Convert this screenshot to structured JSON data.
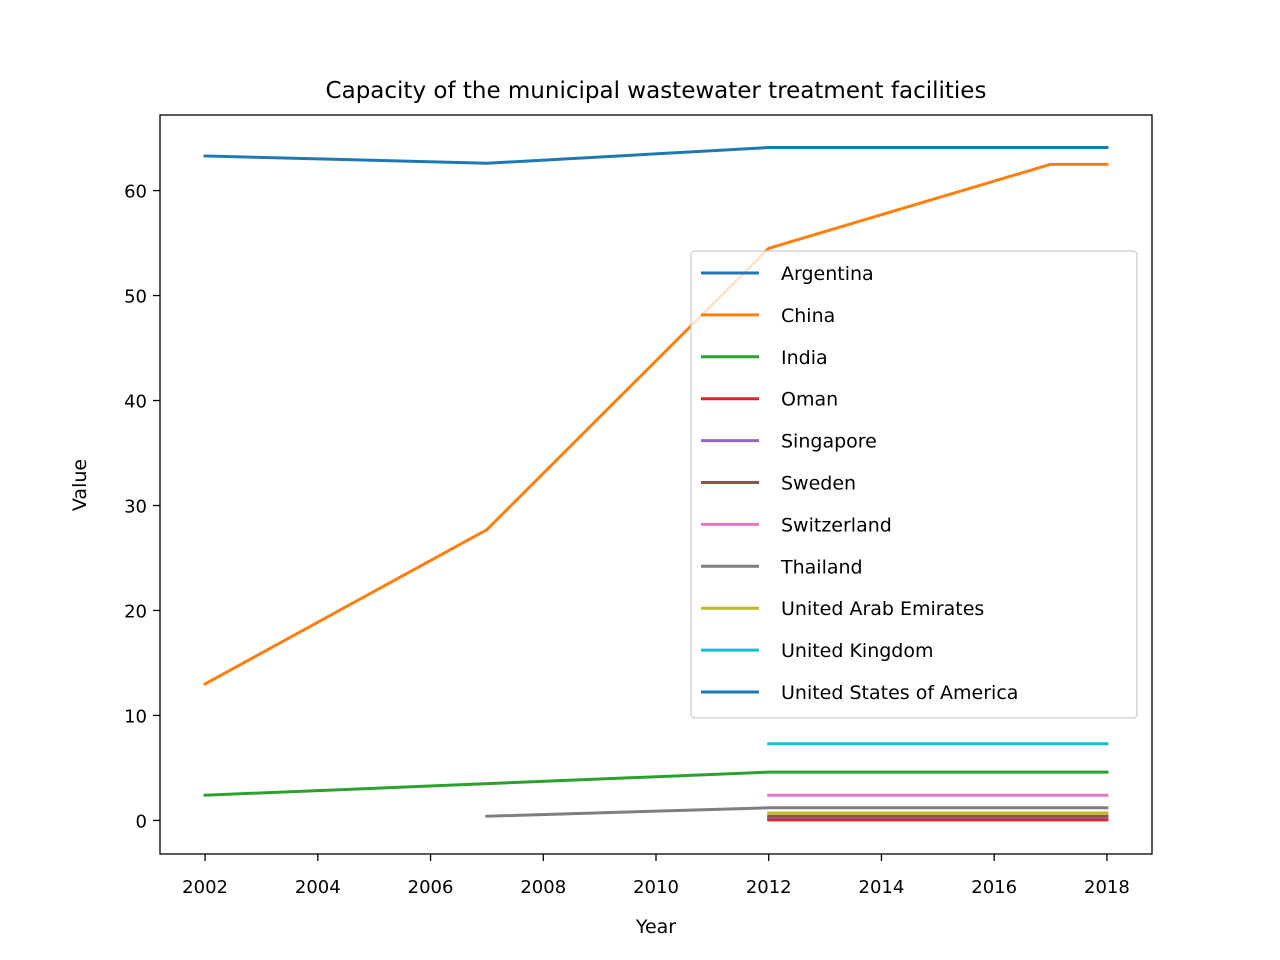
{
  "chart_data": {
    "type": "line",
    "title": "Capacity of the municipal wastewater treatment facilities",
    "xlabel": "Year",
    "ylabel": "Value",
    "xlim": [
      2001.2,
      2018.8
    ],
    "ylim": [
      -3.2,
      67.2
    ],
    "xticks": [
      2002,
      2004,
      2006,
      2008,
      2010,
      2012,
      2014,
      2016,
      2018
    ],
    "yticks": [
      0,
      10,
      20,
      30,
      40,
      50,
      60
    ],
    "grid": false,
    "legend_position": "center-right",
    "series": [
      {
        "name": "Argentina",
        "color": "#1f77b4",
        "x": [
          2012,
          2018
        ],
        "values": [
          0.2,
          0.2
        ]
      },
      {
        "name": "China",
        "color": "#ff7f0e",
        "x": [
          2002,
          2007,
          2012,
          2017,
          2018
        ],
        "values": [
          13.0,
          27.7,
          54.5,
          62.5,
          62.5
        ]
      },
      {
        "name": "India",
        "color": "#2ca02c",
        "x": [
          2002,
          2012,
          2018
        ],
        "values": [
          2.4,
          4.6,
          4.6
        ]
      },
      {
        "name": "Oman",
        "color": "#d62728",
        "x": [
          2012,
          2018
        ],
        "values": [
          0.05,
          0.05
        ]
      },
      {
        "name": "Singapore",
        "color": "#9467bd",
        "x": [
          2012,
          2018
        ],
        "values": [
          0.3,
          0.3
        ]
      },
      {
        "name": "Sweden",
        "color": "#8c564b",
        "x": [
          2012,
          2018
        ],
        "values": [
          0.4,
          0.4
        ]
      },
      {
        "name": "Switzerland",
        "color": "#e377c2",
        "x": [
          2012,
          2018
        ],
        "values": [
          2.4,
          2.4
        ]
      },
      {
        "name": "Thailand",
        "color": "#7f7f7f",
        "x": [
          2007,
          2012,
          2018
        ],
        "values": [
          0.4,
          1.2,
          1.2
        ]
      },
      {
        "name": "United Arab Emirates",
        "color": "#bcbd22",
        "x": [
          2012,
          2018
        ],
        "values": [
          0.7,
          0.7
        ]
      },
      {
        "name": "United Kingdom",
        "color": "#17becf",
        "x": [
          2012,
          2018
        ],
        "values": [
          7.3,
          7.3
        ]
      },
      {
        "name": "United States of America",
        "color": "#1f77b4",
        "x": [
          2002,
          2007,
          2012,
          2018
        ],
        "values": [
          63.3,
          62.6,
          64.1,
          64.1
        ]
      }
    ]
  }
}
